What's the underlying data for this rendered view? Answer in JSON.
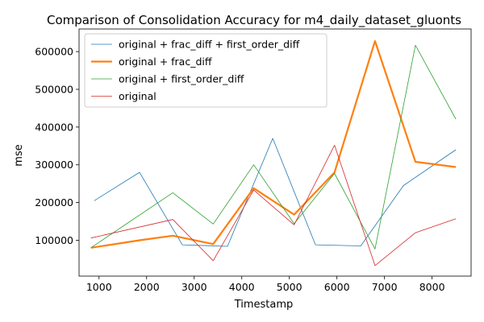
{
  "chart_data": {
    "type": "line",
    "title": "Comparison of Consolidation Accuracy for m4_daily_dataset_gluonts",
    "xlabel": "Timestamp",
    "ylabel": "mse",
    "xlim": [
      580,
      8820
    ],
    "ylim": [
      5000,
      660000
    ],
    "x_ticks": [
      1000,
      2000,
      3000,
      4000,
      5000,
      6000,
      7000,
      8000
    ],
    "y_ticks": [
      100000,
      200000,
      300000,
      400000,
      500000,
      600000
    ],
    "grid": false,
    "legend_position": "top-left",
    "series": [
      {
        "name": "original + frac_diff + first_order_diff",
        "color": "#1f77b4",
        "width": 0.8,
        "points": [
          [
            900,
            205000
          ],
          [
            1850,
            280000
          ],
          [
            2750,
            88000
          ],
          [
            3700,
            84000
          ],
          [
            4650,
            370000
          ],
          [
            5550,
            88000
          ],
          [
            6500,
            85000
          ],
          [
            7400,
            245000
          ],
          [
            8500,
            340000
          ]
        ]
      },
      {
        "name": "original + frac_diff",
        "color": "#ff7f0e",
        "width": 2.2,
        "points": [
          [
            830,
            80000
          ],
          [
            1850,
            100000
          ],
          [
            2550,
            112000
          ],
          [
            3400,
            90000
          ],
          [
            4250,
            238000
          ],
          [
            5100,
            168000
          ],
          [
            5950,
            280000
          ],
          [
            6800,
            628000
          ],
          [
            7650,
            308000
          ],
          [
            8500,
            294000
          ]
        ]
      },
      {
        "name": "original + first_order_diff",
        "color": "#2ca02c",
        "width": 0.8,
        "points": [
          [
            830,
            80000
          ],
          [
            2550,
            226000
          ],
          [
            3400,
            143000
          ],
          [
            4250,
            300000
          ],
          [
            5100,
            144000
          ],
          [
            5950,
            277000
          ],
          [
            6800,
            77000
          ],
          [
            7650,
            617000
          ],
          [
            8500,
            421000
          ]
        ]
      },
      {
        "name": "original",
        "color": "#d62728",
        "width": 0.8,
        "points": [
          [
            830,
            106000
          ],
          [
            2550,
            155000
          ],
          [
            3400,
            46000
          ],
          [
            4250,
            233000
          ],
          [
            5100,
            141000
          ],
          [
            5950,
            352000
          ],
          [
            6800,
            33000
          ],
          [
            7650,
            120000
          ],
          [
            8500,
            157000
          ]
        ]
      }
    ]
  }
}
